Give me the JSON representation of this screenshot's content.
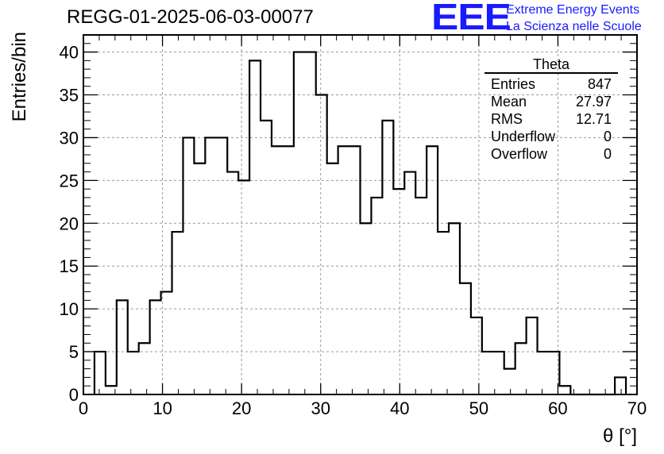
{
  "header": {
    "run_id": "REGG-01-2025-06-03-00077",
    "logo_text": "EEE",
    "org_line1": "Extreme Energy Events",
    "org_line2": "La Scienza nelle Scuole"
  },
  "stats": {
    "name": "Theta",
    "rows": [
      {
        "label": "Entries",
        "value": "847"
      },
      {
        "label": "Mean",
        "value": "27.97"
      },
      {
        "label": "RMS",
        "value": "12.71"
      },
      {
        "label": "Underflow",
        "value": "0"
      },
      {
        "label": "Overflow",
        "value": "0"
      }
    ]
  },
  "colors": {
    "line": "#000000",
    "grid": "#9a9a9a",
    "brand": "#1a1aff"
  },
  "chart_data": {
    "type": "histogram",
    "xlabel": "θ [°]",
    "ylabel": "Entries/bin",
    "xlim": [
      0,
      70
    ],
    "ylim": [
      0,
      42
    ],
    "bin_width": 1.4,
    "x_ticks": [
      0,
      10,
      20,
      30,
      40,
      50,
      60,
      70
    ],
    "y_ticks": [
      0,
      5,
      10,
      15,
      20,
      25,
      30,
      35,
      40
    ],
    "grid": true,
    "legend": "top-right stats box",
    "bin_edges": [
      1.4,
      2.8,
      4.2,
      5.6,
      7.0,
      8.4,
      9.8,
      11.2,
      12.6,
      14.0,
      15.4,
      16.8,
      18.2,
      19.6,
      21.0,
      22.4,
      23.8,
      25.2,
      26.6,
      28.0,
      29.4,
      30.8,
      32.2,
      33.6,
      35.0,
      36.4,
      37.8,
      39.2,
      40.6,
      42.0,
      43.4,
      44.8,
      46.2,
      47.6,
      49.0,
      50.4,
      51.8,
      53.2,
      54.6,
      56.0,
      57.4,
      58.8,
      60.2,
      61.6,
      63.0,
      64.4,
      65.8,
      67.2
    ],
    "counts": [
      5,
      1,
      11,
      5,
      6,
      11,
      12,
      19,
      30,
      27,
      30,
      30,
      26,
      25,
      39,
      32,
      29,
      29,
      40,
      40,
      35,
      27,
      29,
      29,
      20,
      23,
      32,
      24,
      26,
      23,
      29,
      19,
      20,
      13,
      9,
      5,
      5,
      3,
      6,
      9,
      5,
      5,
      1,
      0,
      0,
      0,
      0,
      2
    ]
  }
}
